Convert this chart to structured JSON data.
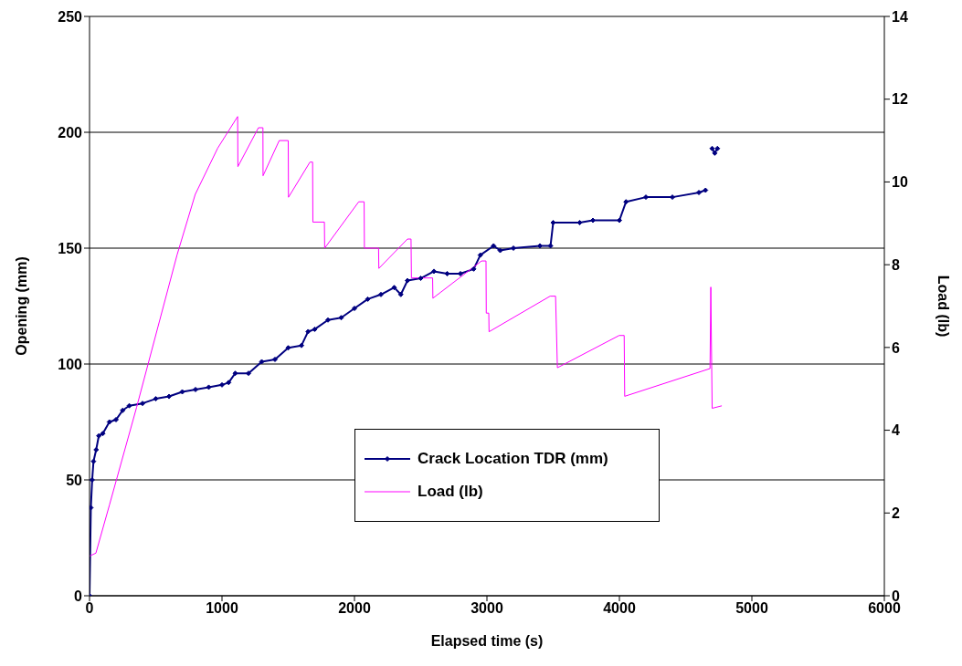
{
  "chart_data": {
    "type": "line",
    "xlabel": "Elapsed time (s)",
    "ylabel": "Opening (mm)",
    "y2label": "Load (lb)",
    "xlim": [
      0,
      6000
    ],
    "xticks": [
      0,
      1000,
      2000,
      3000,
      4000,
      5000,
      6000
    ],
    "ylim": [
      0,
      250
    ],
    "yticks": [
      0,
      50,
      100,
      150,
      200,
      250
    ],
    "y2lim": [
      0,
      14
    ],
    "y2ticks": [
      0,
      2,
      4,
      6,
      8,
      10,
      12,
      14
    ],
    "grid": "y",
    "legend": "bottom",
    "series": [
      {
        "name": "Crack Location TDR (mm)",
        "color": "#000080",
        "marker": "diamond",
        "x": [
          0,
          10,
          20,
          30,
          50,
          70,
          100,
          150,
          200,
          250,
          300,
          400,
          500,
          600,
          700,
          800,
          900,
          1000,
          1050,
          1100,
          1200,
          1300,
          1400,
          1500,
          1600,
          1650,
          1700,
          1800,
          1900,
          2000,
          2100,
          2200,
          2300,
          2350,
          2400,
          2500,
          2600,
          2700,
          2800,
          2900,
          2950,
          3050,
          3100,
          3200,
          3400,
          3480,
          3500,
          3700,
          3800,
          4000,
          4050,
          4200,
          4400,
          4600,
          4650,
          4680,
          4700,
          4720,
          4740
        ],
        "values": [
          0,
          38,
          50,
          58,
          63,
          69,
          70,
          75,
          76,
          80,
          82,
          83,
          85,
          86,
          88,
          89,
          90,
          91,
          92,
          96,
          96,
          101,
          102,
          107,
          108,
          114,
          115,
          119,
          120,
          124,
          128,
          130,
          133,
          130,
          136,
          137,
          140,
          139,
          139,
          141,
          147,
          151,
          149,
          150,
          151,
          151,
          161,
          161,
          162,
          162,
          170,
          172,
          172,
          174,
          175,
          null,
          193,
          191,
          193
        ]
      },
      {
        "name": "Load (lb)",
        "color": "#ff00ff",
        "marker": "none",
        "axis": "y2",
        "x": [
          0,
          48,
          150,
          355,
          559,
          661,
          798,
          968,
          1118,
          1120,
          1275,
          1309,
          1310,
          1432,
          1500,
          1502,
          1664,
          1684,
          1686,
          1773,
          1775,
          2032,
          2073,
          2075,
          2182,
          2184,
          2400,
          2427,
          2430,
          2590,
          2592,
          2959,
          2993,
          2995,
          3014,
          3016,
          3477,
          3518,
          3532,
          3998,
          4036,
          4040,
          4684,
          4690,
          4700,
          4773
        ],
        "values": [
          0.96,
          1.03,
          2.19,
          4.55,
          7.01,
          8.24,
          9.7,
          10.82,
          11.58,
          10.37,
          11.31,
          11.31,
          10.15,
          11.0,
          11.0,
          9.63,
          10.48,
          10.48,
          9.03,
          9.03,
          8.4,
          9.52,
          9.52,
          8.4,
          8.4,
          7.91,
          8.62,
          8.62,
          7.68,
          7.68,
          7.19,
          8.09,
          8.09,
          6.83,
          6.83,
          6.38,
          7.24,
          7.24,
          5.51,
          6.29,
          6.29,
          4.82,
          5.49,
          7.46,
          4.53,
          4.59
        ]
      }
    ]
  }
}
